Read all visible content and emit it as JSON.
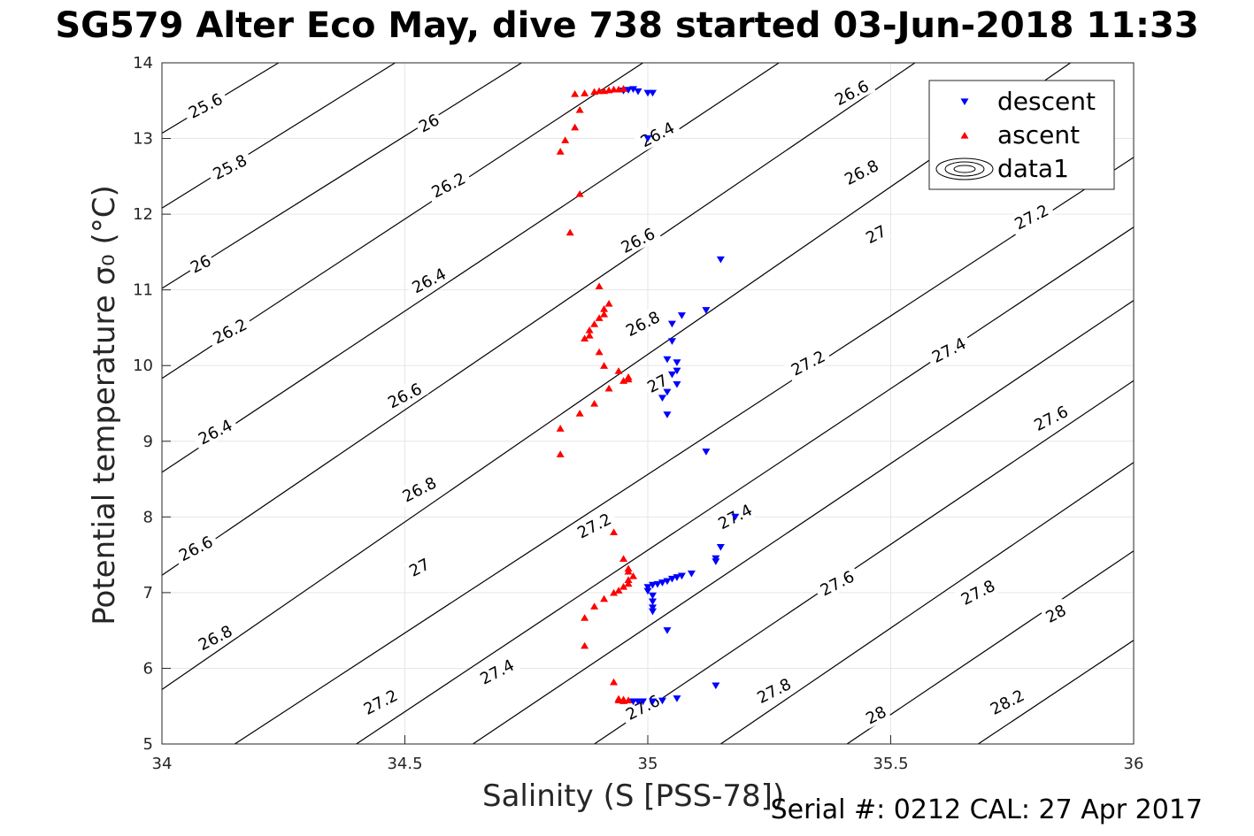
{
  "title": "SG579 Alter Eco May, dive 738 started 03-Jun-2018 11:33",
  "serial_text": "Serial #: 0212  CAL: 27 Apr 2017",
  "colors": {
    "descent": "#0000ff",
    "ascent": "#ff0000",
    "contour": "#000000",
    "grid": "#e6e6e6"
  },
  "chart_data": {
    "type": "scatter",
    "title": "SG579 Alter Eco May, dive 738 started 03-Jun-2018 11:33",
    "xlabel": "Salinity (S [PSS-78])",
    "ylabel": "Potential temperature σ₀ (°C)",
    "xlim": [
      34,
      36
    ],
    "ylim": [
      5,
      14
    ],
    "xticks": [
      "34",
      "34.5",
      "35",
      "35.5",
      "36"
    ],
    "yticks": [
      "5",
      "6",
      "7",
      "8",
      "9",
      "10",
      "11",
      "12",
      "13",
      "14"
    ],
    "grid": true,
    "legend_position": "top-right",
    "legend": [
      "descent",
      "ascent",
      "data1"
    ],
    "contours": {
      "name": "data1",
      "levels": [
        25.6,
        25.8,
        26,
        26.2,
        26.4,
        26.6,
        26.8,
        27,
        27.2,
        27.4,
        27.6,
        27.8,
        28,
        28.2
      ],
      "lines": [
        {
          "level": 25.6,
          "points": [
            [
              34,
              13.07
            ],
            [
              34.24,
              14
            ]
          ]
        },
        {
          "level": 25.8,
          "points": [
            [
              34,
              12.08
            ],
            [
              34.48,
              14
            ]
          ]
        },
        {
          "level": 26,
          "points": [
            [
              34,
              11.02
            ],
            [
              34.74,
              14
            ]
          ]
        },
        {
          "level": 26.2,
          "points": [
            [
              34,
              9.83
            ],
            [
              34.99,
              14
            ]
          ]
        },
        {
          "level": 26.4,
          "points": [
            [
              34,
              8.59
            ],
            [
              35.27,
              14
            ]
          ]
        },
        {
          "level": 26.6,
          "points": [
            [
              34,
              7.23
            ],
            [
              35.55,
              14
            ]
          ]
        },
        {
          "level": 26.8,
          "points": [
            [
              34,
              5.72
            ],
            [
              35.87,
              14
            ]
          ]
        },
        {
          "level": 27,
          "points": [
            [
              34.15,
              5
            ],
            [
              36,
              12.75
            ]
          ]
        },
        {
          "level": 27.2,
          "points": [
            [
              34.4,
              5
            ],
            [
              36,
              11.83
            ]
          ]
        },
        {
          "level": 27.4,
          "points": [
            [
              34.64,
              5
            ],
            [
              36,
              10.86
            ]
          ]
        },
        {
          "level": 27.6,
          "points": [
            [
              34.89,
              5
            ],
            [
              36,
              9.8
            ]
          ]
        },
        {
          "level": 27.8,
          "points": [
            [
              35.15,
              5
            ],
            [
              36,
              8.72
            ]
          ]
        },
        {
          "level": 28,
          "points": [
            [
              35.41,
              5
            ],
            [
              36,
              7.55
            ]
          ]
        },
        {
          "level": 28.2,
          "points": [
            [
              35.68,
              5
            ],
            [
              36,
              6.37
            ]
          ]
        }
      ],
      "labels": [
        {
          "text": "25.6",
          "x": 34.09,
          "y": 13.43,
          "angle": -27
        },
        {
          "text": "25.8",
          "x": 34.14,
          "y": 12.62,
          "angle": -27
        },
        {
          "text": "26",
          "x": 34.08,
          "y": 11.34,
          "angle": -27
        },
        {
          "text": "26",
          "x": 34.55,
          "y": 13.2,
          "angle": -27
        },
        {
          "text": "26.2",
          "x": 34.14,
          "y": 10.45,
          "angle": -27
        },
        {
          "text": "26.2",
          "x": 34.59,
          "y": 12.38,
          "angle": -27
        },
        {
          "text": "26.4",
          "x": 34.11,
          "y": 9.12,
          "angle": -27
        },
        {
          "text": "26.4",
          "x": 34.55,
          "y": 11.12,
          "angle": -27
        },
        {
          "text": "26.4",
          "x": 35.02,
          "y": 13.05,
          "angle": -27
        },
        {
          "text": "26.6",
          "x": 34.07,
          "y": 7.58,
          "angle": -27
        },
        {
          "text": "26.6",
          "x": 34.5,
          "y": 9.6,
          "angle": -27
        },
        {
          "text": "26.6",
          "x": 34.98,
          "y": 11.65,
          "angle": -27
        },
        {
          "text": "26.6",
          "x": 35.42,
          "y": 13.6,
          "angle": -27
        },
        {
          "text": "26.8",
          "x": 34.11,
          "y": 6.4,
          "angle": -27
        },
        {
          "text": "26.8",
          "x": 34.53,
          "y": 8.36,
          "angle": -27
        },
        {
          "text": "26.8",
          "x": 34.99,
          "y": 10.55,
          "angle": -27
        },
        {
          "text": "26.8",
          "x": 35.44,
          "y": 12.55,
          "angle": -27
        },
        {
          "text": "27",
          "x": 34.53,
          "y": 7.33,
          "angle": -27
        },
        {
          "text": "27",
          "x": 35.02,
          "y": 9.76,
          "angle": -27
        },
        {
          "text": "27",
          "x": 35.47,
          "y": 11.73,
          "angle": -27
        },
        {
          "text": "27.2",
          "x": 34.45,
          "y": 5.55,
          "angle": -27
        },
        {
          "text": "27.2",
          "x": 34.89,
          "y": 7.88,
          "angle": -27
        },
        {
          "text": "27.2",
          "x": 35.33,
          "y": 10.03,
          "angle": -27
        },
        {
          "text": "27.2",
          "x": 35.79,
          "y": 11.96,
          "angle": -27
        },
        {
          "text": "27.4",
          "x": 34.69,
          "y": 5.95,
          "angle": -27
        },
        {
          "text": "27.4",
          "x": 35.18,
          "y": 8.0,
          "angle": -27
        },
        {
          "text": "27.4",
          "x": 35.62,
          "y": 10.2,
          "angle": -27
        },
        {
          "text": "27.6",
          "x": 34.99,
          "y": 5.48,
          "angle": -27
        },
        {
          "text": "27.6",
          "x": 35.39,
          "y": 7.12,
          "angle": -27
        },
        {
          "text": "27.6",
          "x": 35.83,
          "y": 9.3,
          "angle": -27
        },
        {
          "text": "27.8",
          "x": 35.26,
          "y": 5.7,
          "angle": -27
        },
        {
          "text": "27.8",
          "x": 35.68,
          "y": 7.0,
          "angle": -27
        },
        {
          "text": "28",
          "x": 35.47,
          "y": 5.38,
          "angle": -27
        },
        {
          "text": "28",
          "x": 35.84,
          "y": 6.72,
          "angle": -27
        },
        {
          "text": "28.2",
          "x": 35.74,
          "y": 5.55,
          "angle": -27
        }
      ]
    },
    "series": [
      {
        "name": "descent",
        "marker": "triangle-down",
        "points": [
          [
            34.95,
            13.63
          ],
          [
            34.96,
            13.64
          ],
          [
            34.97,
            13.65
          ],
          [
            34.98,
            13.62
          ],
          [
            35.0,
            13.6
          ],
          [
            35.01,
            13.6
          ],
          [
            35.0,
            13.0
          ],
          [
            35.15,
            11.4
          ],
          [
            35.12,
            10.73
          ],
          [
            35.07,
            10.66
          ],
          [
            35.05,
            10.55
          ],
          [
            35.05,
            10.32
          ],
          [
            35.04,
            10.08
          ],
          [
            35.06,
            10.04
          ],
          [
            35.06,
            9.93
          ],
          [
            35.05,
            9.88
          ],
          [
            35.06,
            9.75
          ],
          [
            35.04,
            9.65
          ],
          [
            35.03,
            9.57
          ],
          [
            35.04,
            9.35
          ],
          [
            35.12,
            8.86
          ],
          [
            35.18,
            8.0
          ],
          [
            35.15,
            7.6
          ],
          [
            35.14,
            7.45
          ],
          [
            35.14,
            7.41
          ],
          [
            35.09,
            7.25
          ],
          [
            35.07,
            7.22
          ],
          [
            35.06,
            7.2
          ],
          [
            35.05,
            7.18
          ],
          [
            35.04,
            7.15
          ],
          [
            35.03,
            7.13
          ],
          [
            35.02,
            7.11
          ],
          [
            35.01,
            7.1
          ],
          [
            35.0,
            7.07
          ],
          [
            35.0,
            7.02
          ],
          [
            35.01,
            6.96
          ],
          [
            35.01,
            6.88
          ],
          [
            35.01,
            6.8
          ],
          [
            35.01,
            6.75
          ],
          [
            35.04,
            6.5
          ],
          [
            35.14,
            5.77
          ],
          [
            35.06,
            5.6
          ],
          [
            35.03,
            5.57
          ],
          [
            35.01,
            5.56
          ],
          [
            34.99,
            5.56
          ],
          [
            34.98,
            5.56
          ],
          [
            34.97,
            5.56
          ]
        ]
      },
      {
        "name": "ascent",
        "marker": "triangle-up",
        "points": [
          [
            34.85,
            13.59
          ],
          [
            34.87,
            13.6
          ],
          [
            34.89,
            13.62
          ],
          [
            34.9,
            13.63
          ],
          [
            34.91,
            13.63
          ],
          [
            34.92,
            13.64
          ],
          [
            34.93,
            13.65
          ],
          [
            34.94,
            13.65
          ],
          [
            34.95,
            13.66
          ],
          [
            34.86,
            13.38
          ],
          [
            34.85,
            13.15
          ],
          [
            34.83,
            12.98
          ],
          [
            34.82,
            12.83
          ],
          [
            34.86,
            12.27
          ],
          [
            34.84,
            11.76
          ],
          [
            34.9,
            11.05
          ],
          [
            34.92,
            10.82
          ],
          [
            34.91,
            10.75
          ],
          [
            34.91,
            10.68
          ],
          [
            34.9,
            10.63
          ],
          [
            34.89,
            10.55
          ],
          [
            34.88,
            10.47
          ],
          [
            34.88,
            10.4
          ],
          [
            34.87,
            10.36
          ],
          [
            34.9,
            10.18
          ],
          [
            34.91,
            10.0
          ],
          [
            34.94,
            9.93
          ],
          [
            34.96,
            9.85
          ],
          [
            34.96,
            9.82
          ],
          [
            34.95,
            9.8
          ],
          [
            34.92,
            9.7
          ],
          [
            34.89,
            9.5
          ],
          [
            34.86,
            9.37
          ],
          [
            34.82,
            9.17
          ],
          [
            34.82,
            8.83
          ],
          [
            34.93,
            7.8
          ],
          [
            34.95,
            7.45
          ],
          [
            34.96,
            7.32
          ],
          [
            34.96,
            7.28
          ],
          [
            34.97,
            7.22
          ],
          [
            34.96,
            7.17
          ],
          [
            34.96,
            7.12
          ],
          [
            34.95,
            7.08
          ],
          [
            34.94,
            7.03
          ],
          [
            34.93,
            7.0
          ],
          [
            34.91,
            6.92
          ],
          [
            34.89,
            6.82
          ],
          [
            34.87,
            6.67
          ],
          [
            34.87,
            6.3
          ],
          [
            34.93,
            5.82
          ],
          [
            34.94,
            5.6
          ],
          [
            34.94,
            5.58
          ],
          [
            34.95,
            5.57
          ],
          [
            34.95,
            5.59
          ],
          [
            34.96,
            5.58
          ]
        ]
      }
    ]
  }
}
